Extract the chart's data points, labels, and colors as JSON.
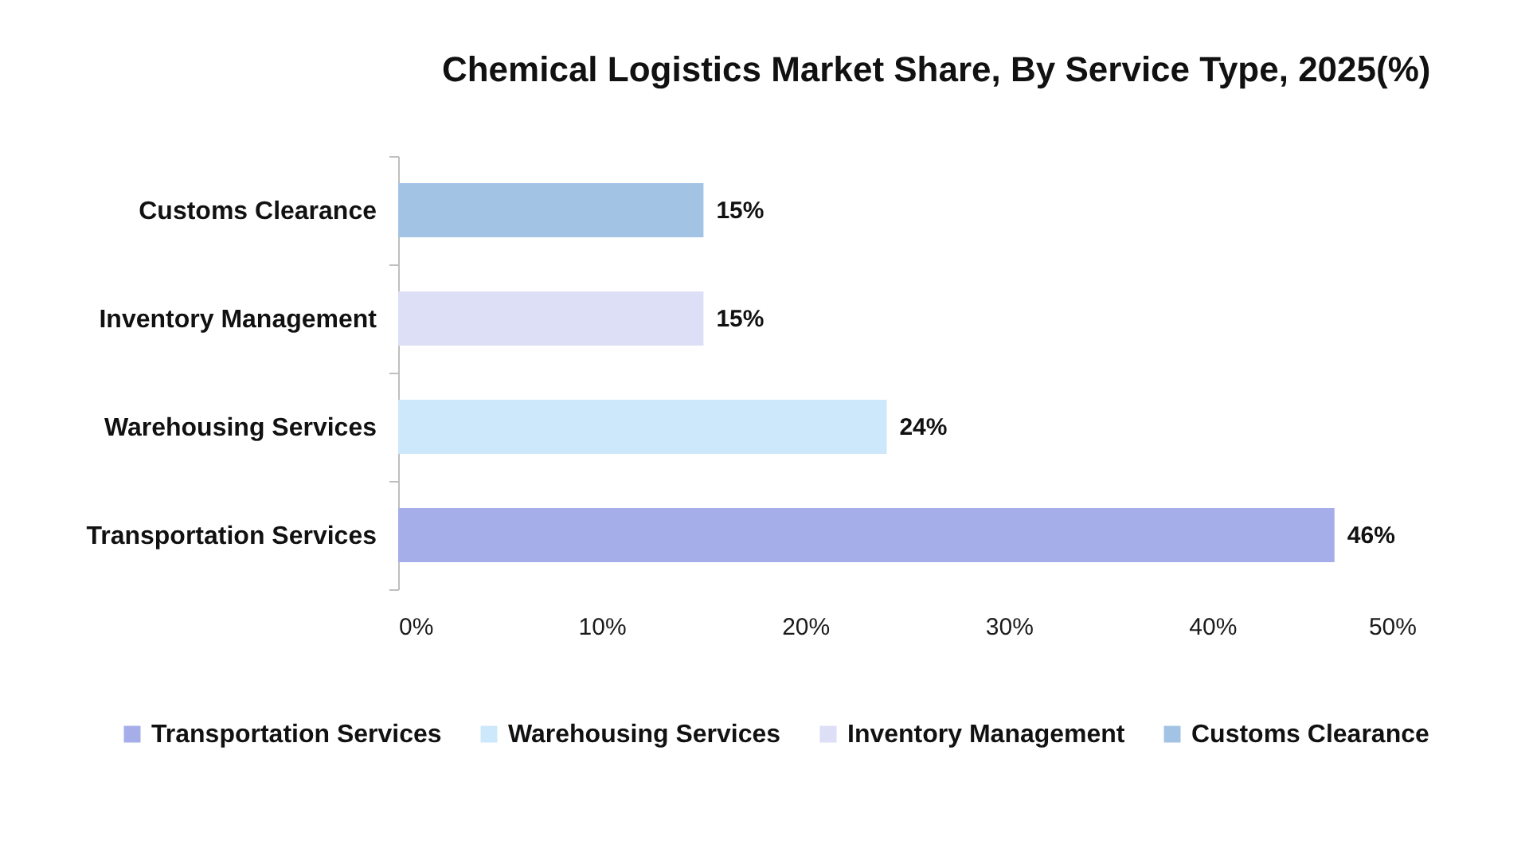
{
  "chart_data": {
    "type": "bar",
    "orientation": "horizontal",
    "stacked": true,
    "title": "Chemical Logistics Market Share, By Service Type, 2025(%)",
    "categories": [
      "Customs Clearance",
      "Inventory Management",
      "Warehousing Services",
      "Transportation Services"
    ],
    "series": [
      {
        "name": "Transportation Services",
        "color": "#a6aeea",
        "values": [
          null,
          null,
          null,
          46
        ],
        "value_labels": [
          null,
          null,
          null,
          "46%"
        ]
      },
      {
        "name": "Warehousing Services",
        "color": "#cde8fa",
        "values": [
          null,
          null,
          24,
          null
        ],
        "value_labels": [
          null,
          null,
          "24%",
          null
        ]
      },
      {
        "name": "Inventory Management",
        "color": "#dcdff5",
        "values": [
          null,
          15,
          null,
          null
        ],
        "value_labels": [
          null,
          "15%",
          null,
          null
        ]
      },
      {
        "name": "Customs Clearance",
        "color": "#a3c3e5",
        "values": [
          15,
          null,
          null,
          null
        ],
        "value_labels": [
          "15%",
          null,
          null,
          null
        ]
      }
    ],
    "xlim": [
      0,
      50
    ],
    "xticks": [
      {
        "value": 0,
        "label": "0%"
      },
      {
        "value": 10,
        "label": "10%"
      },
      {
        "value": 20,
        "label": "20%"
      },
      {
        "value": 30,
        "label": "30%"
      },
      {
        "value": 40,
        "label": "40%"
      },
      {
        "value": 50,
        "label": "50%"
      }
    ],
    "legend": "bottom"
  }
}
